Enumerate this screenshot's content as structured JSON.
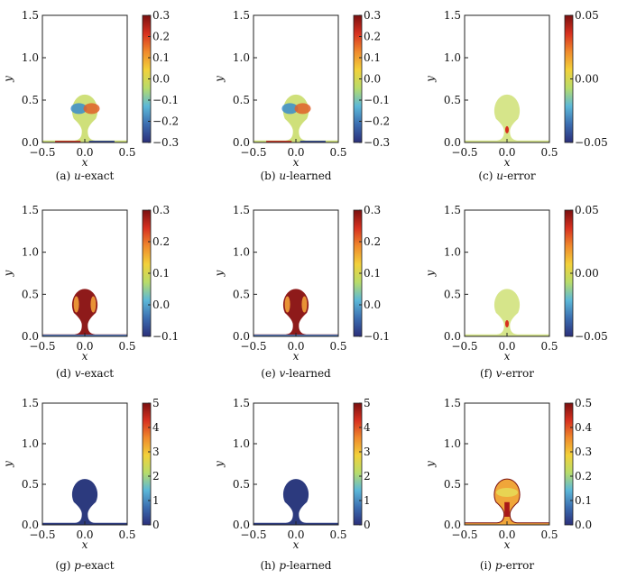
{
  "chart_data": [
    {
      "type": "heatmap",
      "caption": {
        "label": "(a)",
        "var": "u",
        "suffix": "-exact"
      },
      "xlabel": "x",
      "ylabel": "y",
      "xlim": [
        -0.5,
        0.5
      ],
      "ylim": [
        0,
        1.5
      ],
      "xticks": [
        "−0.5",
        "0.0",
        "0.5"
      ],
      "yticks": [
        "0.0",
        "0.5",
        "1.0",
        "1.5"
      ],
      "colorbar": {
        "range": [
          -0.3,
          0.3
        ],
        "ticks": [
          "0.3",
          "0.2",
          "0.1",
          "0.0",
          "−0.1",
          "−0.2",
          "−0.3"
        ]
      },
      "field": "u",
      "fill_color": "#cfe07a"
    },
    {
      "type": "heatmap",
      "caption": {
        "label": "(b)",
        "var": "u",
        "suffix": "-learned"
      },
      "xlabel": "x",
      "ylabel": "y",
      "xlim": [
        -0.5,
        0.5
      ],
      "ylim": [
        0,
        1.5
      ],
      "xticks": [
        "−0.5",
        "0.0",
        "0.5"
      ],
      "yticks": [
        "0.0",
        "0.5",
        "1.0",
        "1.5"
      ],
      "colorbar": {
        "range": [
          -0.3,
          0.3
        ],
        "ticks": [
          "0.3",
          "0.2",
          "0.1",
          "0.0",
          "−0.1",
          "−0.2",
          "−0.3"
        ]
      },
      "field": "u",
      "fill_color": "#cfe07a"
    },
    {
      "type": "heatmap",
      "caption": {
        "label": "(c)",
        "var": "u",
        "suffix": "-error"
      },
      "xlabel": "x",
      "ylabel": "y",
      "xlim": [
        -0.5,
        0.5
      ],
      "ylim": [
        0,
        1.5
      ],
      "xticks": [
        "−0.5",
        "0.0",
        "0.5"
      ],
      "yticks": [
        "0.0",
        "0.5",
        "1.0",
        "1.5"
      ],
      "colorbar": {
        "range": [
          -0.05,
          0.05
        ],
        "ticks": [
          "0.05",
          "0.00",
          "−0.05"
        ]
      },
      "field": "error",
      "fill_color": "#d6e58a"
    },
    {
      "type": "heatmap",
      "caption": {
        "label": "(d)",
        "var": "v",
        "suffix": "-exact"
      },
      "xlabel": "x",
      "ylabel": "y",
      "xlim": [
        -0.5,
        0.5
      ],
      "ylim": [
        0,
        1.5
      ],
      "xticks": [
        "−0.5",
        "0.0",
        "0.5"
      ],
      "yticks": [
        "0.0",
        "0.5",
        "1.0",
        "1.5"
      ],
      "colorbar": {
        "range": [
          -0.1,
          0.3
        ],
        "ticks": [
          "0.3",
          "0.2",
          "0.1",
          "0.0",
          "−0.1"
        ]
      },
      "field": "v",
      "fill_color": "#8e1a1a"
    },
    {
      "type": "heatmap",
      "caption": {
        "label": "(e)",
        "var": "v",
        "suffix": "-learned"
      },
      "xlabel": "x",
      "ylabel": "y",
      "xlim": [
        -0.5,
        0.5
      ],
      "ylim": [
        0,
        1.5
      ],
      "xticks": [
        "−0.5",
        "0.0",
        "0.5"
      ],
      "yticks": [
        "0.0",
        "0.5",
        "1.0",
        "1.5"
      ],
      "colorbar": {
        "range": [
          -0.1,
          0.3
        ],
        "ticks": [
          "0.3",
          "0.2",
          "0.1",
          "0.0",
          "−0.1"
        ]
      },
      "field": "v",
      "fill_color": "#8e1a1a"
    },
    {
      "type": "heatmap",
      "caption": {
        "label": "(f)",
        "var": "v",
        "suffix": "-error"
      },
      "xlabel": "x",
      "ylabel": "y",
      "xlim": [
        -0.5,
        0.5
      ],
      "ylim": [
        0,
        1.5
      ],
      "xticks": [
        "−0.5",
        "0.0",
        "0.5"
      ],
      "yticks": [
        "0.0",
        "0.5",
        "1.0",
        "1.5"
      ],
      "colorbar": {
        "range": [
          -0.05,
          0.05
        ],
        "ticks": [
          "0.05",
          "0.00",
          "−0.05"
        ]
      },
      "field": "error",
      "fill_color": "#d6e58a"
    },
    {
      "type": "heatmap",
      "caption": {
        "label": "(g)",
        "var": "p",
        "suffix": "-exact"
      },
      "xlabel": "x",
      "ylabel": "y",
      "xlim": [
        -0.5,
        0.5
      ],
      "ylim": [
        0,
        1.5
      ],
      "xticks": [
        "−0.5",
        "0.0",
        "0.5"
      ],
      "yticks": [
        "0.0",
        "0.5",
        "1.0",
        "1.5"
      ],
      "colorbar": {
        "range": [
          0,
          5
        ],
        "ticks": [
          "5",
          "4",
          "3",
          "2",
          "1",
          "0"
        ]
      },
      "field": "p",
      "fill_color": "#2c3a7e"
    },
    {
      "type": "heatmap",
      "caption": {
        "label": "(h)",
        "var": "p",
        "suffix": "-learned"
      },
      "xlabel": "x",
      "ylabel": "y",
      "xlim": [
        -0.5,
        0.5
      ],
      "ylim": [
        0,
        1.5
      ],
      "xticks": [
        "−0.5",
        "0.0",
        "0.5"
      ],
      "yticks": [
        "0.0",
        "0.5",
        "1.0",
        "1.5"
      ],
      "colorbar": {
        "range": [
          0,
          5
        ],
        "ticks": [
          "5",
          "4",
          "3",
          "2",
          "1",
          "0"
        ]
      },
      "field": "p",
      "fill_color": "#2c3a7e"
    },
    {
      "type": "heatmap",
      "caption": {
        "label": "(i)",
        "var": "p",
        "suffix": "-error"
      },
      "xlabel": "x",
      "ylabel": "y",
      "xlim": [
        -0.5,
        0.5
      ],
      "ylim": [
        0,
        1.5
      ],
      "xticks": [
        "−0.5",
        "0.0",
        "0.5"
      ],
      "yticks": [
        "0.0",
        "0.5",
        "1.0",
        "1.5"
      ],
      "colorbar": {
        "range": [
          0,
          0.5
        ],
        "ticks": [
          "0.5",
          "0.4",
          "0.3",
          "0.2",
          "0.1",
          "0.0"
        ]
      },
      "field": "p-error",
      "fill_color": "#f0a63a"
    }
  ],
  "colormap": [
    "#2b2f7a",
    "#3b6db0",
    "#5cb8d8",
    "#b8dc6a",
    "#f2d13a",
    "#f08a2c",
    "#d7301f",
    "#7a1010"
  ]
}
